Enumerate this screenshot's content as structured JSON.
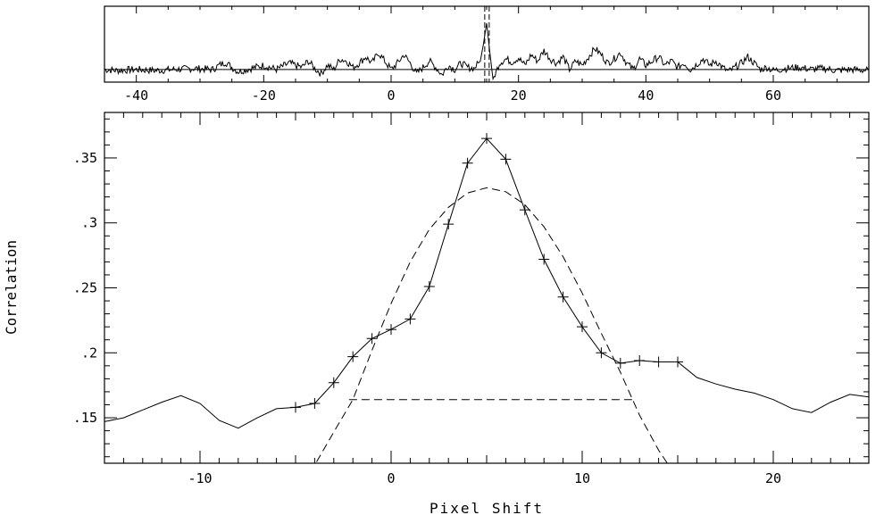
{
  "chart_data": [
    {
      "id": "overview",
      "type": "line",
      "title": "",
      "xlabel": "",
      "ylabel": "",
      "xlim": [
        -45,
        75
      ],
      "ylim": [
        -0.6,
        3.0
      ],
      "x_ticks": [
        -40,
        -20,
        0,
        20,
        40,
        60
      ],
      "x_tick_labels": [
        "-40",
        "-20",
        "0",
        "20",
        "40",
        "60"
      ],
      "baseline": 0.0,
      "peak_window": [
        14.7,
        15.4
      ],
      "series": [
        {
          "points": [
            [
              -45,
              0.0
            ],
            [
              -43,
              -0.05
            ],
            [
              -40,
              0.0
            ],
            [
              -37,
              -0.05
            ],
            [
              -34,
              0.0
            ],
            [
              -31,
              0.05
            ],
            [
              -28,
              0.0
            ],
            [
              -27,
              0.2
            ],
            [
              -26,
              0.35
            ],
            [
              -25,
              0.1
            ],
            [
              -24,
              -0.1
            ],
            [
              -22,
              0.05
            ],
            [
              -20,
              0.2
            ],
            [
              -18,
              0.0
            ],
            [
              -16,
              0.3
            ],
            [
              -14,
              0.1
            ],
            [
              -13,
              0.4
            ],
            [
              -12,
              0.05
            ],
            [
              -11,
              -0.2
            ],
            [
              -10,
              0.2
            ],
            [
              -9,
              0.0
            ],
            [
              -8,
              0.5
            ],
            [
              -7,
              0.4
            ],
            [
              -6,
              0.1
            ],
            [
              -5,
              0.3
            ],
            [
              -4,
              0.6
            ],
            [
              -3,
              0.3
            ],
            [
              -2,
              0.8
            ],
            [
              -1,
              0.4
            ],
            [
              0,
              0.0
            ],
            [
              1,
              0.3
            ],
            [
              2,
              0.7
            ],
            [
              3,
              0.3
            ],
            [
              4,
              -0.2
            ],
            [
              5,
              0.1
            ],
            [
              6,
              0.4
            ],
            [
              7,
              0.1
            ],
            [
              8,
              -0.25
            ],
            [
              9,
              0.2
            ],
            [
              10,
              0.0
            ],
            [
              11,
              0.3
            ],
            [
              12,
              0.1
            ],
            [
              13,
              0.05
            ],
            [
              14,
              0.4
            ],
            [
              14.5,
              1.2
            ],
            [
              15,
              2.2
            ],
            [
              15.5,
              0.8
            ],
            [
              16,
              -0.45
            ],
            [
              16.5,
              -0.1
            ],
            [
              17,
              0.3
            ],
            [
              18,
              0.5
            ],
            [
              19,
              0.35
            ],
            [
              20,
              0.55
            ],
            [
              21,
              0.2
            ],
            [
              22,
              0.7
            ],
            [
              23,
              0.4
            ],
            [
              24,
              0.9
            ],
            [
              25,
              0.5
            ],
            [
              26,
              0.3
            ],
            [
              27,
              0.6
            ],
            [
              28,
              0.0
            ],
            [
              29,
              0.4
            ],
            [
              30,
              0.2
            ],
            [
              31,
              0.6
            ],
            [
              32,
              1.0
            ],
            [
              33,
              0.7
            ],
            [
              34,
              0.3
            ],
            [
              35,
              0.5
            ],
            [
              36,
              0.8
            ],
            [
              37,
              0.3
            ],
            [
              38,
              0.0
            ],
            [
              39,
              0.5
            ],
            [
              40,
              0.2
            ],
            [
              41,
              0.4
            ],
            [
              42,
              0.6
            ],
            [
              43,
              0.2
            ],
            [
              44,
              0.4
            ],
            [
              45,
              0.1
            ],
            [
              46,
              0.3
            ],
            [
              47,
              0.0
            ],
            [
              48,
              0.25
            ],
            [
              49,
              0.5
            ],
            [
              50,
              0.2
            ],
            [
              51,
              0.4
            ],
            [
              52,
              0.1
            ],
            [
              53,
              -0.1
            ],
            [
              54,
              0.1
            ],
            [
              55,
              0.3
            ],
            [
              56,
              0.6
            ],
            [
              57,
              0.3
            ],
            [
              58,
              0.0
            ],
            [
              59,
              0.1
            ],
            [
              60,
              -0.05
            ],
            [
              62,
              0.05
            ],
            [
              64,
              0.1
            ],
            [
              66,
              0.0
            ],
            [
              68,
              0.05
            ],
            [
              70,
              -0.05
            ],
            [
              72,
              0.0
            ],
            [
              75,
              -0.05
            ]
          ]
        }
      ]
    },
    {
      "id": "detail",
      "type": "line",
      "title": "",
      "xlabel": "Pixel Shift",
      "ylabel": "Correlation",
      "xlim": [
        -15,
        25
      ],
      "ylim": [
        0.115,
        0.385
      ],
      "x_ticks": [
        -10,
        0,
        10,
        20
      ],
      "x_tick_labels": [
        "-10",
        "0",
        "10",
        "20"
      ],
      "y_ticks": [
        0.15,
        0.2,
        0.25,
        0.3,
        0.35
      ],
      "y_tick_labels": [
        ".15",
        ".2",
        ".25",
        ".3",
        ".35"
      ],
      "series": [
        {
          "style": "solid",
          "points": [
            [
              -15,
              0.147
            ],
            [
              -14,
              0.15
            ],
            [
              -13,
              0.156
            ],
            [
              -12,
              0.162
            ],
            [
              -11,
              0.167
            ],
            [
              -10,
              0.161
            ],
            [
              -9,
              0.148
            ],
            [
              -8,
              0.142
            ],
            [
              -7,
              0.15
            ],
            [
              -6,
              0.157
            ],
            [
              -5,
              0.158
            ],
            [
              -4,
              0.161
            ],
            [
              -3,
              0.177
            ],
            [
              -2,
              0.197
            ],
            [
              -1,
              0.211
            ],
            [
              0,
              0.218
            ],
            [
              1,
              0.226
            ],
            [
              2,
              0.251
            ],
            [
              3,
              0.299
            ],
            [
              4,
              0.346
            ],
            [
              5,
              0.365
            ],
            [
              6,
              0.349
            ],
            [
              7,
              0.31
            ],
            [
              8,
              0.272
            ],
            [
              9,
              0.243
            ],
            [
              10,
              0.22
            ],
            [
              11,
              0.2
            ],
            [
              12,
              0.192
            ],
            [
              13,
              0.194
            ],
            [
              14,
              0.193
            ],
            [
              15,
              0.193
            ],
            [
              16,
              0.181
            ],
            [
              17,
              0.176
            ],
            [
              18,
              0.172
            ],
            [
              19,
              0.169
            ],
            [
              20,
              0.164
            ],
            [
              21,
              0.157
            ],
            [
              22,
              0.154
            ],
            [
              23,
              0.162
            ],
            [
              24,
              0.168
            ],
            [
              25,
              0.166
            ]
          ]
        },
        {
          "style": "markers",
          "marker": "+",
          "points": [
            [
              -5,
              0.158
            ],
            [
              -4,
              0.161
            ],
            [
              -3,
              0.177
            ],
            [
              -2,
              0.197
            ],
            [
              -1,
              0.211
            ],
            [
              0,
              0.218
            ],
            [
              1,
              0.226
            ],
            [
              2,
              0.251
            ],
            [
              3,
              0.299
            ],
            [
              4,
              0.346
            ],
            [
              5,
              0.365
            ],
            [
              6,
              0.349
            ],
            [
              7,
              0.31
            ],
            [
              8,
              0.272
            ],
            [
              9,
              0.243
            ],
            [
              10,
              0.22
            ],
            [
              11,
              0.2
            ],
            [
              12,
              0.192
            ],
            [
              13,
              0.194
            ],
            [
              14,
              0.193
            ],
            [
              15,
              0.193
            ]
          ]
        },
        {
          "style": "dashed",
          "kind": "gaussian-fit",
          "points": [
            [
              -3.9,
              0.116
            ],
            [
              -3,
              0.139
            ],
            [
              -2,
              0.164
            ],
            [
              -1,
              0.202
            ],
            [
              0,
              0.238
            ],
            [
              1,
              0.27
            ],
            [
              2,
              0.295
            ],
            [
              3,
              0.312
            ],
            [
              4,
              0.323
            ],
            [
              5,
              0.327
            ],
            [
              6,
              0.324
            ],
            [
              7,
              0.314
            ],
            [
              8,
              0.297
            ],
            [
              9,
              0.274
            ],
            [
              10,
              0.246
            ],
            [
              11,
              0.215
            ],
            [
              12,
              0.185
            ],
            [
              13,
              0.152
            ],
            [
              14,
              0.125
            ],
            [
              14.5,
              0.114
            ]
          ]
        },
        {
          "style": "dashed",
          "kind": "baseline",
          "points": [
            [
              -2.2,
              0.164
            ],
            [
              12.8,
              0.164
            ]
          ]
        }
      ]
    }
  ]
}
